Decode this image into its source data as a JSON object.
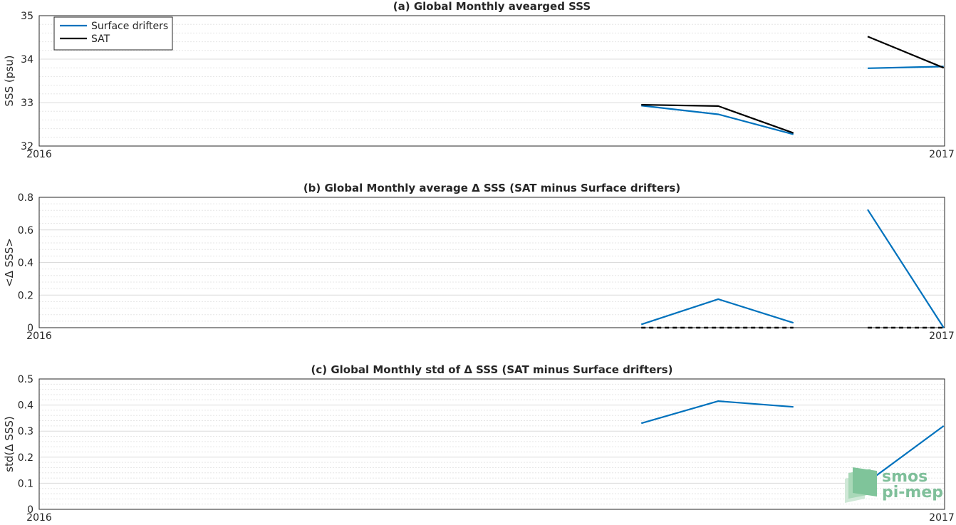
{
  "chart_data": [
    {
      "type": "line",
      "title": "(a) Global Monthly avearged SSS",
      "xlabel": "",
      "ylabel": "SSS (psu)",
      "xlim": [
        "2016",
        "2017"
      ],
      "x_tick_labels": [
        "2016",
        "2017"
      ],
      "ylim": [
        32,
        35
      ],
      "y_ticks": [
        32,
        33,
        34,
        35
      ],
      "y_tick_labels": [
        "32",
        "33",
        "34",
        "35"
      ],
      "grid": true,
      "legend": "top-left",
      "series": [
        {
          "name": "Surface drifters",
          "color": "#0072bd",
          "dash": "solid",
          "segments": [
            [
              [
                0.665,
                32.93
              ],
              [
                0.75,
                32.73
              ],
              [
                0.833,
                32.27
              ]
            ],
            [
              [
                0.915,
                33.79
              ],
              [
                0.999,
                33.83
              ]
            ]
          ]
        },
        {
          "name": "SAT",
          "color": "#000000",
          "dash": "solid",
          "segments": [
            [
              [
                0.665,
                32.95
              ],
              [
                0.75,
                32.92
              ],
              [
                0.833,
                32.3
              ]
            ],
            [
              [
                0.915,
                34.52
              ],
              [
                0.999,
                33.8
              ]
            ]
          ]
        }
      ]
    },
    {
      "type": "line",
      "title": "(b) Global Monthly average Δ SSS (SAT minus Surface drifters)",
      "xlabel": "",
      "ylabel": "<Δ SSS>",
      "xlim": [
        "2016",
        "2017"
      ],
      "x_tick_labels": [
        "2016",
        "2017"
      ],
      "ylim": [
        0,
        0.8
      ],
      "y_ticks": [
        0,
        0.2,
        0.4,
        0.6,
        0.8
      ],
      "y_tick_labels": [
        "0",
        "0.2",
        "0.4",
        "0.6",
        "0.8"
      ],
      "grid": true,
      "series": [
        {
          "color": "#0072bd",
          "dash": "solid",
          "segments": [
            [
              [
                0.665,
                0.02
              ],
              [
                0.75,
                0.175
              ],
              [
                0.833,
                0.03
              ]
            ],
            [
              [
                0.915,
                0.725
              ],
              [
                0.999,
                0.0
              ]
            ]
          ]
        },
        {
          "color": "#000000",
          "dash": "dashed",
          "segments": [
            [
              [
                0.665,
                0.0
              ],
              [
                0.833,
                0.0
              ]
            ],
            [
              [
                0.915,
                0.0
              ],
              [
                0.999,
                0.0
              ]
            ]
          ]
        }
      ]
    },
    {
      "type": "line",
      "title": "(c) Global Monthly std of Δ SSS (SAT minus Surface drifters)",
      "xlabel": "",
      "ylabel": "std(Δ SSS)",
      "xlim": [
        "2016",
        "2017"
      ],
      "x_tick_labels": [
        "2016",
        "2017"
      ],
      "ylim": [
        0,
        0.5
      ],
      "y_ticks": [
        0,
        0.1,
        0.2,
        0.3,
        0.4,
        0.5
      ],
      "y_tick_labels": [
        "0",
        "0.1",
        "0.2",
        "0.3",
        "0.4",
        "0.5"
      ],
      "grid": true,
      "series": [
        {
          "color": "#0072bd",
          "dash": "solid",
          "segments": [
            [
              [
                0.665,
                0.33
              ],
              [
                0.75,
                0.415
              ],
              [
                0.833,
                0.393
              ]
            ],
            [
              [
                0.915,
                0.105
              ],
              [
                0.999,
                0.32
              ]
            ]
          ]
        }
      ]
    }
  ],
  "logo": {
    "line1": "smos",
    "line2": "pi-mep"
  }
}
